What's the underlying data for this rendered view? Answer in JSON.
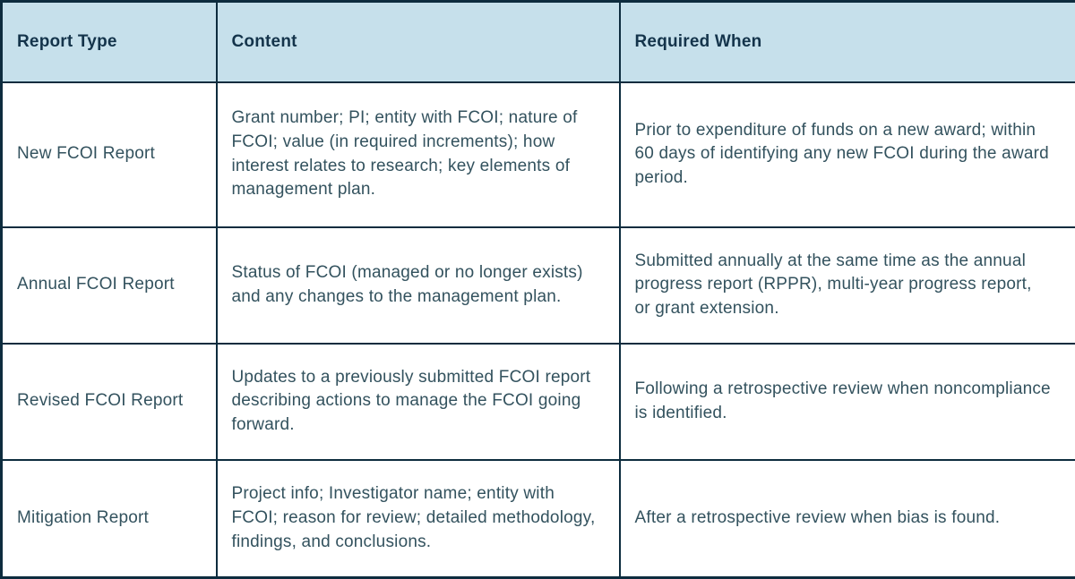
{
  "theme": {
    "header_bg": "#c6e0eb",
    "border_color": "#0d2c3e",
    "header_text": "#14344b",
    "body_text": "#33525e",
    "page_bg": "#ffffff"
  },
  "chart_data": {
    "type": "table",
    "title": "",
    "columns": [
      "Report Type",
      "Content",
      "Required When"
    ],
    "rows": [
      {
        "report_type": "New FCOI Report",
        "content": "Grant number; PI; entity with FCOI; nature of FCOI; value (in required increments); how interest relates to research; key elements of management plan.",
        "required_when": "Prior to expenditure of funds on a new award; within 60 days of identifying any new FCOI during the award period."
      },
      {
        "report_type": "Annual FCOI Report",
        "content": "Status of FCOI (managed or no longer exists) and any changes to the management plan.",
        "required_when": "Submitted annually at the same time as the annual progress report (RPPR), multi-year progress report, or grant extension."
      },
      {
        "report_type": "Revised FCOI Report",
        "content": "Updates to a previously submitted FCOI report describing actions to manage the FCOI going forward.",
        "required_when": "Following a retrospective review when noncompliance is identified."
      },
      {
        "report_type": "Mitigation Report",
        "content": "Project info; Investigator name; entity with FCOI; reason for review; detailed methodology, findings, and conclusions.",
        "required_when": "After a retrospective review when bias is found."
      }
    ]
  }
}
